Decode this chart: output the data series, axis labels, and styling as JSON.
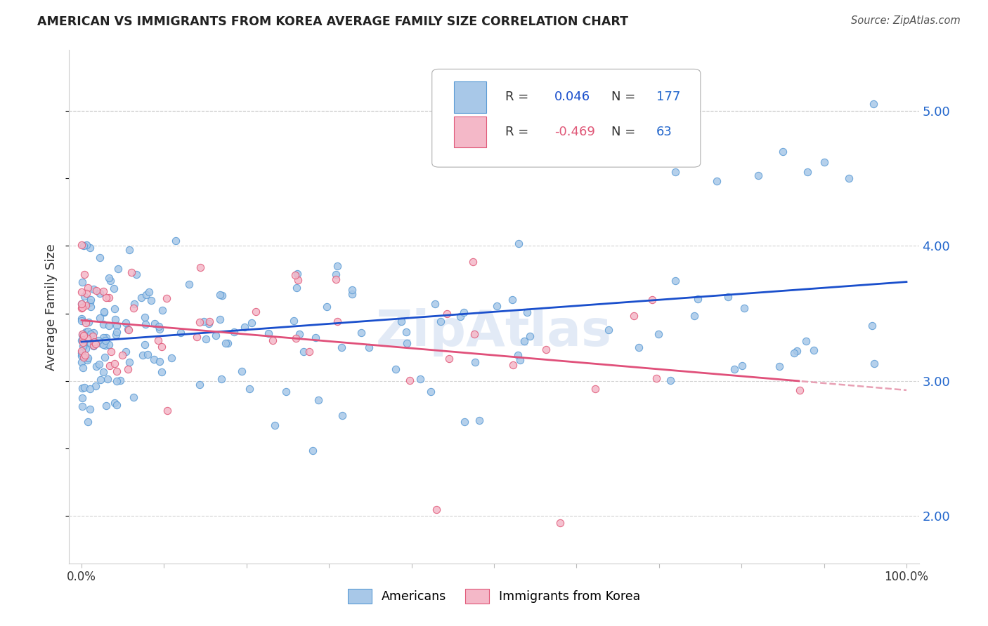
{
  "title": "AMERICAN VS IMMIGRANTS FROM KOREA AVERAGE FAMILY SIZE CORRELATION CHART",
  "source": "Source: ZipAtlas.com",
  "ylabel": "Average Family Size",
  "american_color": "#a8c8e8",
  "american_edge_color": "#5b9bd5",
  "korea_color": "#f4b8c8",
  "korea_edge_color": "#e05878",
  "american_line_color": "#1a4fcc",
  "korea_line_color": "#e0507a",
  "korea_dash_color": "#e8a0b4",
  "ytick_color": "#2266cc",
  "grid_color": "#c8c8c8",
  "background_color": "#ffffff",
  "r_american": 0.046,
  "n_american": 177,
  "r_korea": -0.469,
  "n_korea": 63,
  "ylim": [
    1.65,
    5.45
  ],
  "yticks": [
    2.0,
    3.0,
    4.0,
    5.0
  ],
  "xlim": [
    -0.015,
    1.015
  ],
  "watermark_color": "#d0ddf0",
  "watermark_alpha": 0.6
}
